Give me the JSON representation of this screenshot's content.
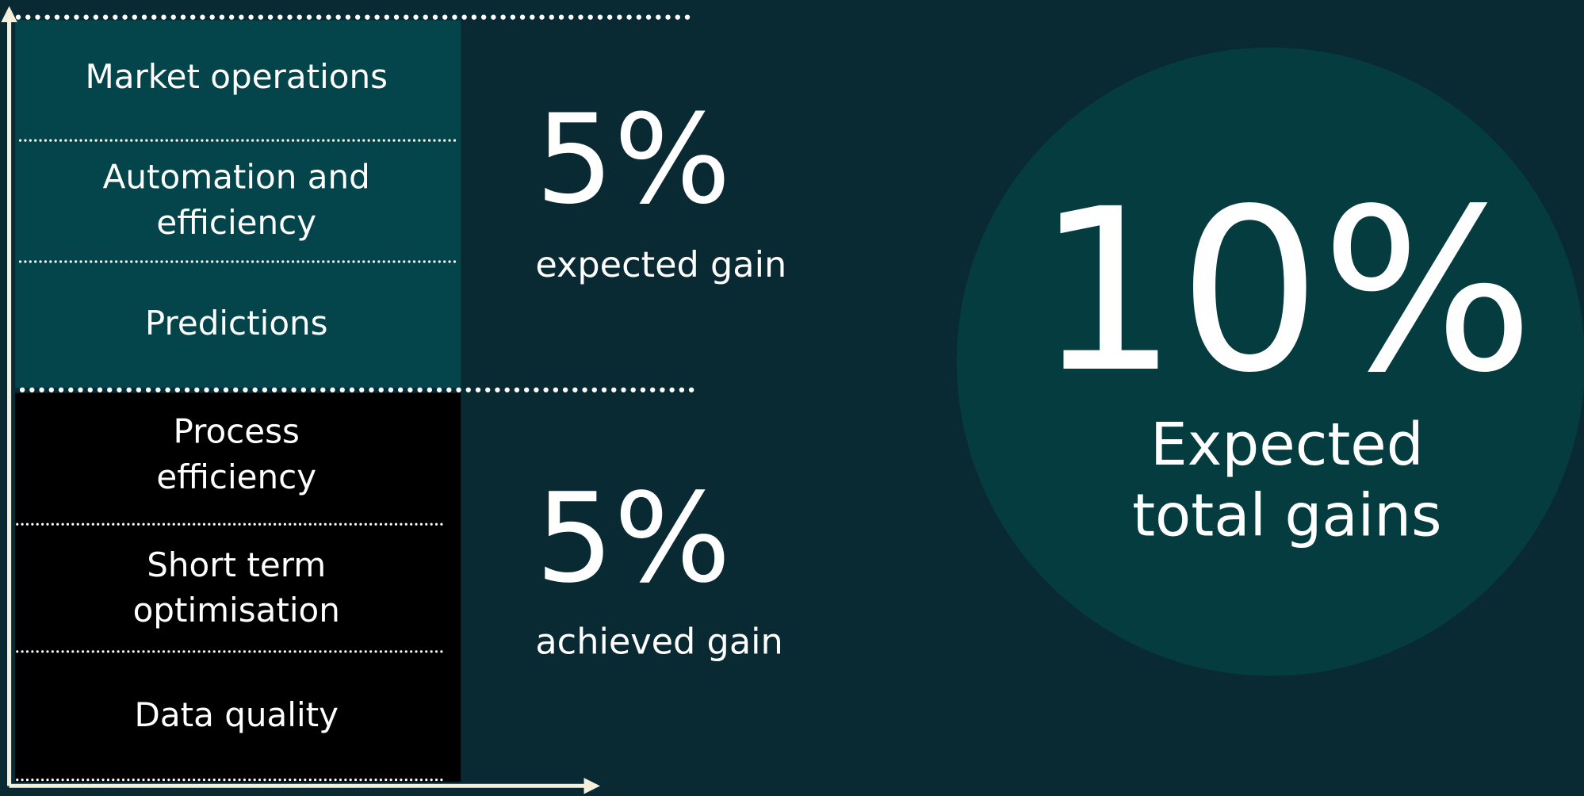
{
  "expected": {
    "items": [
      [
        "Market operations"
      ],
      [
        "Automation and",
        "efficiency"
      ],
      [
        "Predictions"
      ]
    ],
    "value": "5%",
    "caption": "expected gain"
  },
  "achieved": {
    "items": [
      [
        "Process",
        "efficiency"
      ],
      [
        "Short term",
        "optimisation"
      ],
      [
        "Data quality"
      ]
    ],
    "value": "5%",
    "caption": "achieved gain"
  },
  "total": {
    "value": "10%",
    "caption": [
      "Expected",
      "total gains"
    ]
  }
}
